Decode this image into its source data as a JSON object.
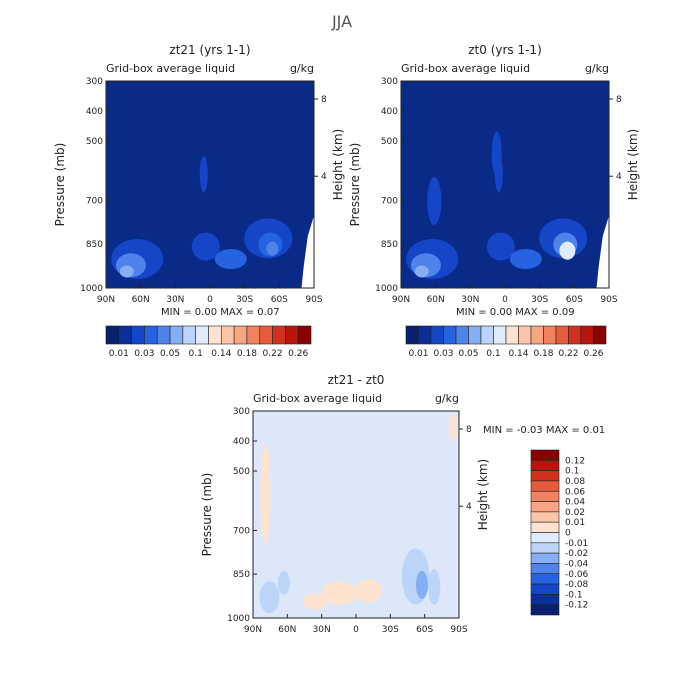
{
  "figure": {
    "title": "JJA"
  },
  "chart_data": [
    {
      "type": "heatmap",
      "title": "zt21 (yrs 1-1)",
      "subtitle_left": "Grid-box average liquid",
      "subtitle_right": "g/kg",
      "ylabel": "Pressure (mb)",
      "ylabel_right": "Height (km)",
      "x_ticks": [
        "90N",
        "60N",
        "30N",
        "0",
        "30S",
        "60S",
        "90S"
      ],
      "y_ticks": [
        "300",
        "400",
        "500",
        "700",
        "850",
        "1000"
      ],
      "y_right_ticks": [
        "8",
        "4"
      ],
      "stats": {
        "min_label": "MIN =",
        "min": "0.00",
        "max_label": "MAX =",
        "max": "0.07"
      },
      "colorbar": {
        "orientation": "horizontal",
        "labels": [
          "0.01",
          "0.03",
          "0.05",
          "0.1",
          "0.14",
          "0.18",
          "0.22",
          "0.26"
        ],
        "colors": [
          "#08206e",
          "#0a2f9c",
          "#1546c8",
          "#2563e0",
          "#4e83ea",
          "#86aef2",
          "#bcd4f7",
          "#e0ebfb",
          "#fde2d0",
          "#fbc6a8",
          "#f7a583",
          "#f2815f",
          "#e65a3e",
          "#d1321f",
          "#b8150d",
          "#8b0000"
        ]
      }
    },
    {
      "type": "heatmap",
      "title": "zt0 (yrs 1-1)",
      "subtitle_left": "Grid-box average liquid",
      "subtitle_right": "g/kg",
      "ylabel": "Pressure (mb)",
      "ylabel_right": "Height (km)",
      "x_ticks": [
        "90N",
        "60N",
        "30N",
        "0",
        "30S",
        "60S",
        "90S"
      ],
      "y_ticks": [
        "300",
        "400",
        "500",
        "700",
        "850",
        "1000"
      ],
      "y_right_ticks": [
        "8",
        "4"
      ],
      "stats": {
        "min_label": "MIN =",
        "min": "0.00",
        "max_label": "MAX =",
        "max": "0.09"
      },
      "colorbar": {
        "orientation": "horizontal",
        "labels": [
          "0.01",
          "0.03",
          "0.05",
          "0.1",
          "0.14",
          "0.18",
          "0.22",
          "0.26"
        ],
        "colors": [
          "#08206e",
          "#0a2f9c",
          "#1546c8",
          "#2563e0",
          "#4e83ea",
          "#86aef2",
          "#bcd4f7",
          "#e0ebfb",
          "#fde2d0",
          "#fbc6a8",
          "#f7a583",
          "#f2815f",
          "#e65a3e",
          "#d1321f",
          "#b8150d",
          "#8b0000"
        ]
      }
    },
    {
      "type": "heatmap",
      "title": "zt21 - zt0",
      "subtitle_left": "Grid-box average liquid",
      "subtitle_right": "g/kg",
      "ylabel": "Pressure (mb)",
      "ylabel_right": "Height (km)",
      "x_ticks": [
        "90N",
        "60N",
        "30N",
        "0",
        "30S",
        "60S",
        "90S"
      ],
      "y_ticks": [
        "300",
        "400",
        "500",
        "700",
        "850",
        "1000"
      ],
      "y_right_ticks": [
        "8",
        "4"
      ],
      "stats": {
        "min_label": "MIN =",
        "min": "-0.03",
        "max_label": "MAX =",
        "max": "0.01"
      },
      "colorbar": {
        "orientation": "vertical",
        "labels": [
          "0.12",
          "0.1",
          "0.08",
          "0.06",
          "0.04",
          "0.02",
          "0.01",
          "0",
          "-0.01",
          "-0.02",
          "-0.04",
          "-0.06",
          "-0.08",
          "-0.1",
          "-0.12"
        ],
        "colors": [
          "#8b0000",
          "#b8150d",
          "#d1321f",
          "#e65a3e",
          "#f2815f",
          "#f7a583",
          "#fbc6a8",
          "#fde2d0",
          "#e0ebfb",
          "#bcd4f7",
          "#86aef2",
          "#4e83ea",
          "#2563e0",
          "#1546c8",
          "#0a2f9c",
          "#08206e"
        ]
      }
    }
  ]
}
